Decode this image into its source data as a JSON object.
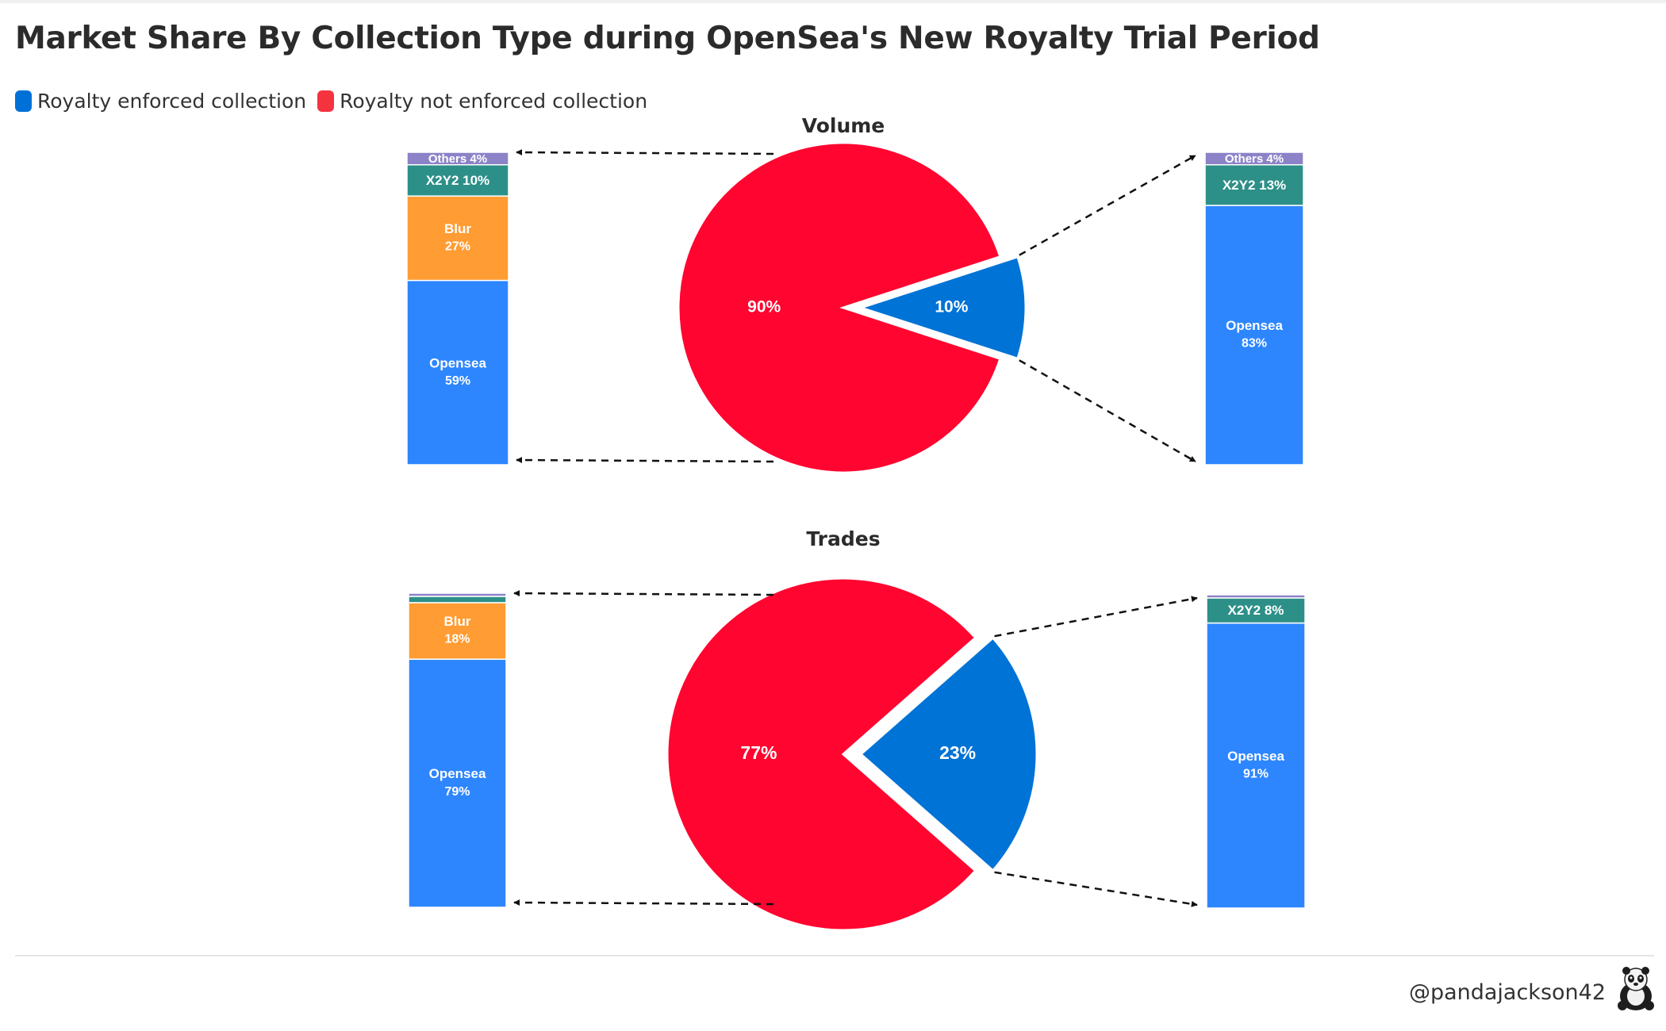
{
  "title": "Market Share By Collection Type during OpenSea's New Royalty Trial Period",
  "legend": [
    {
      "label": "Royalty enforced collection",
      "color": "#0070d9"
    },
    {
      "label": "Royalty not enforced collection",
      "color": "#f5333f"
    }
  ],
  "colors": {
    "enforced": "#0073d6",
    "not_enforced": "#ff0530",
    "opensea": "#2e86ff",
    "blur": "#ff9c33",
    "x2y2": "#2d9088",
    "others": "#8c82c8"
  },
  "credit": "@pandajackson42",
  "avatar_icon": "panda-avatar-icon",
  "chart_data": [
    {
      "type": "pie",
      "title": "Volume",
      "slices": [
        {
          "label": "Royalty not enforced collection",
          "value": 90,
          "display": "90%"
        },
        {
          "label": "Royalty enforced collection",
          "value": 10,
          "display": "10%"
        }
      ],
      "breakdowns": {
        "not_enforced": [
          {
            "name": "Opensea",
            "value": 59,
            "text": [
              "Opensea",
              "59%"
            ]
          },
          {
            "name": "Blur",
            "value": 27,
            "text": [
              "Blur",
              "27%"
            ]
          },
          {
            "name": "X2Y2",
            "value": 10,
            "text": [
              "X2Y2 10%"
            ]
          },
          {
            "name": "Others",
            "value": 4,
            "text": [
              "Others 4%"
            ]
          }
        ],
        "enforced": [
          {
            "name": "Opensea",
            "value": 83,
            "text": [
              "Opensea",
              "83%"
            ]
          },
          {
            "name": "X2Y2",
            "value": 13,
            "text": [
              "X2Y2 13%"
            ]
          },
          {
            "name": "Others",
            "value": 4,
            "text": [
              "Others 4%"
            ]
          }
        ]
      }
    },
    {
      "type": "pie",
      "title": "Trades",
      "slices": [
        {
          "label": "Royalty not enforced collection",
          "value": 77,
          "display": "77%"
        },
        {
          "label": "Royalty enforced collection",
          "value": 23,
          "display": "23%"
        }
      ],
      "breakdowns": {
        "not_enforced": [
          {
            "name": "Opensea",
            "value": 79,
            "text": [
              "Opensea",
              "79%"
            ]
          },
          {
            "name": "Blur",
            "value": 18,
            "text": [
              "Blur",
              "18%"
            ]
          },
          {
            "name": "X2Y2",
            "value": 2,
            "text": []
          },
          {
            "name": "Others",
            "value": 1,
            "text": []
          }
        ],
        "enforced": [
          {
            "name": "Opensea",
            "value": 91,
            "text": [
              "Opensea",
              "91%"
            ]
          },
          {
            "name": "X2Y2",
            "value": 8,
            "text": [
              "X2Y2 8%"
            ]
          },
          {
            "name": "Others",
            "value": 1,
            "text": []
          }
        ]
      }
    }
  ]
}
